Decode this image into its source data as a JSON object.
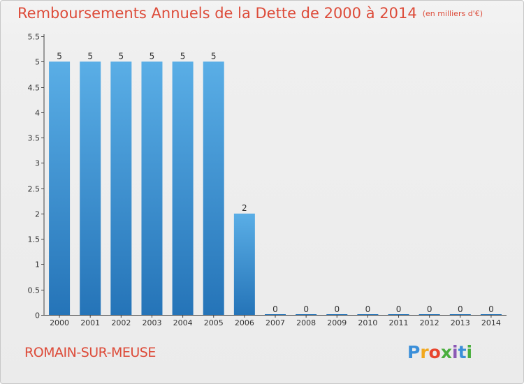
{
  "title": {
    "main": "Remboursements Annuels de la Dette de 2000 à 2014",
    "unit": "(en milliers d'€)"
  },
  "place_name": "ROMAIN-SUR-MEUSE",
  "logo": {
    "text": "Proxiti",
    "letters": [
      "P",
      "r",
      "o",
      "x",
      "i",
      "t",
      "i"
    ]
  },
  "colors": {
    "title": "#dd4b39",
    "bar_light": "#5aaee6",
    "bar_dark": "#2574b8",
    "axis": "#444444"
  },
  "chart_data": {
    "type": "bar",
    "title": "Remboursements Annuels de la Dette de 2000 à 2014",
    "subtitle": "(en milliers d'€)",
    "xlabel": "",
    "ylabel": "",
    "categories": [
      "2000",
      "2001",
      "2002",
      "2003",
      "2004",
      "2005",
      "2006",
      "2007",
      "2008",
      "2009",
      "2010",
      "2011",
      "2012",
      "2013",
      "2014"
    ],
    "values": [
      5,
      5,
      5,
      5,
      5,
      5,
      2,
      0,
      0,
      0,
      0,
      0,
      0,
      0,
      0
    ],
    "value_labels": [
      "5",
      "5",
      "5",
      "5",
      "5",
      "5",
      "2",
      "0",
      "0",
      "0",
      "0",
      "0",
      "0",
      "0",
      "0"
    ],
    "ylim": [
      0,
      5.5
    ],
    "yticks": [
      0,
      0.5,
      1,
      1.5,
      2,
      2.5,
      3,
      3.5,
      4,
      4.5,
      5,
      5.5
    ],
    "ytick_labels": [
      "0",
      "0.5",
      "1",
      "1.5",
      "2",
      "2.5",
      "3",
      "3.5",
      "4",
      "4.5",
      "5",
      "5.5"
    ],
    "grid": false,
    "legend": "none"
  }
}
